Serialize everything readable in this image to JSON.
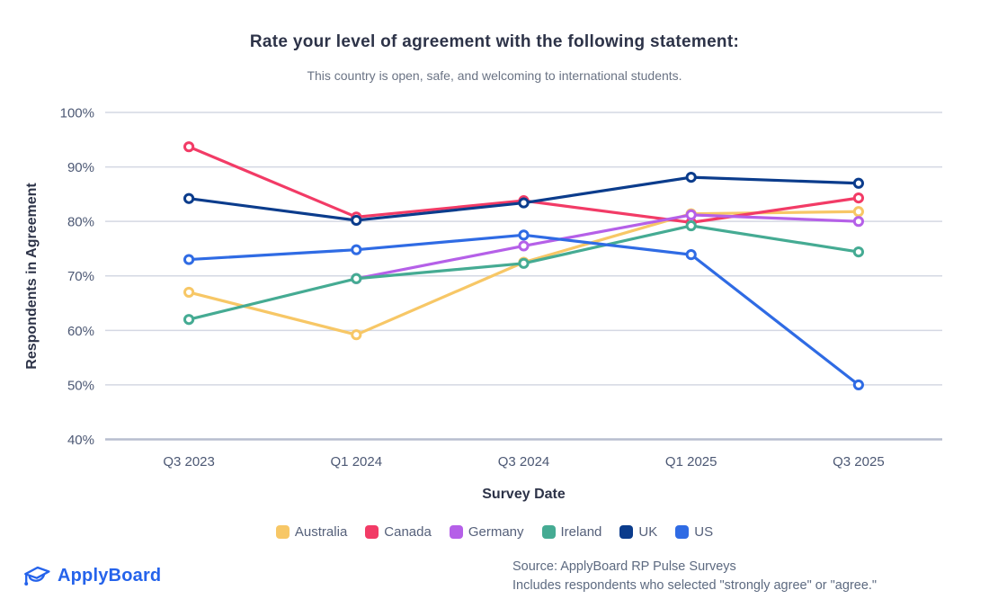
{
  "header": {
    "title": "Rate your level of agreement with the following statement:",
    "subtitle": "This country is open, safe, and welcoming to international students."
  },
  "chart_data": {
    "type": "line",
    "categories": [
      "Q3 2023",
      "Q1 2024",
      "Q3 2024",
      "Q1 2025",
      "Q3 2025"
    ],
    "series": [
      {
        "name": "Australia",
        "color": "#F7C766",
        "values": [
          67.0,
          59.2,
          72.5,
          81.4,
          81.8
        ]
      },
      {
        "name": "Canada",
        "color": "#F23B66",
        "values": [
          93.7,
          80.8,
          83.8,
          79.8,
          84.3
        ]
      },
      {
        "name": "Germany",
        "color": "#B560E8",
        "values": [
          null,
          69.5,
          75.5,
          81.2,
          80.0
        ]
      },
      {
        "name": "Ireland",
        "color": "#45AB93",
        "values": [
          62.0,
          69.5,
          72.3,
          79.2,
          74.4
        ]
      },
      {
        "name": "UK",
        "color": "#0B3C8C",
        "values": [
          84.2,
          80.2,
          83.4,
          88.1,
          87.0
        ]
      },
      {
        "name": "US",
        "color": "#2F6BE4",
        "values": [
          73.0,
          74.8,
          77.5,
          73.9,
          50.0
        ]
      }
    ],
    "xlabel": "Survey Date",
    "ylabel": "Respondents in Agreement",
    "ylim": [
      40,
      100
    ],
    "ytick_values": [
      100,
      90,
      80,
      70,
      60,
      50,
      40
    ],
    "ytick_labels": [
      "100%",
      "90%",
      "80%",
      "70%",
      "60%",
      "50%",
      "40%"
    ],
    "grid": true,
    "legend_position": "bottom"
  },
  "footer": {
    "logo_text": "ApplyBoard",
    "source_line1": "Source: ApplyBoard RP Pulse Surveys",
    "source_line2": "Includes respondents who selected \"strongly agree\" or \"agree.\""
  },
  "colors": {
    "gridline": "#D4D8E3",
    "axis_line": "#B7BECF",
    "tick_text": "#4C5874",
    "title_text": "#2D3348",
    "subtitle_text": "#6A7384",
    "source_text": "#5D6A80",
    "logo_blue": "#2563EB"
  }
}
